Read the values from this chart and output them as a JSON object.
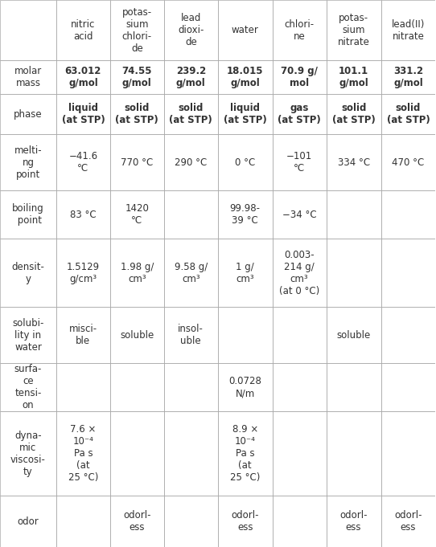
{
  "columns": [
    "",
    "nitric\nacid",
    "potas-\nsium\nchlori-\nde",
    "lead\ndioxi-\nde",
    "water",
    "chlori-\nne",
    "potas-\nsium\nnitrate",
    "lead(II)\nnitrate"
  ],
  "rows": [
    {
      "label": "molar\nmass",
      "values": [
        "63.012\ng/mol",
        "74.55\ng/mol",
        "239.2\ng/mol",
        "18.015\ng/mol",
        "70.9 g/\nmol",
        "101.1\ng/mol",
        "331.2\ng/mol"
      ]
    },
    {
      "label": "phase",
      "values": [
        "liquid\n(at STP)",
        "solid\n(at STP)",
        "solid\n(at STP)",
        "liquid\n(at STP)",
        "gas\n(at STP)",
        "solid\n(at STP)",
        "solid\n(at STP)"
      ]
    },
    {
      "label": "melti-\nng\npoint",
      "values": [
        "−41.6\n°C",
        "770 °C",
        "290 °C",
        "0 °C",
        "−101\n°C",
        "334 °C",
        "470 °C"
      ]
    },
    {
      "label": "boiling\n point",
      "values": [
        "83 °C",
        "1420\n°C",
        "",
        "99.98-\n39 °C",
        "−34 °C",
        "",
        ""
      ]
    },
    {
      "label": "densit-\ny",
      "values": [
        "1.5129\ng/cm³",
        "1.98 g/\ncm³",
        "9.58 g/\ncm³",
        "1 g/\ncm³",
        "0.003-\n214 g/\ncm³\n(at 0 °C)",
        "",
        ""
      ]
    },
    {
      "label": "solubi-\nlity in\nwater",
      "values": [
        "misci-\nble",
        "soluble",
        "insol-\nuble",
        "",
        "",
        "soluble",
        ""
      ]
    },
    {
      "label": "surfa-\nce\ntensi-\non",
      "values": [
        "",
        "",
        "",
        "0.0728\nN/m",
        "",
        "",
        ""
      ]
    },
    {
      "label": "dyna-\nmic\nviscosi-\nty",
      "values": [
        "7.6 ×\n10⁻⁴\nPa s\n(at\n25 °C)",
        "",
        "",
        "8.9 ×\n10⁻⁴\nPa s\n(at\n25 °C)",
        "",
        "",
        ""
      ]
    },
    {
      "label": "odor",
      "values": [
        "",
        "odorl-\ness",
        "",
        "odorl-\ness",
        "",
        "odorl-\ness",
        "odorl-\ness"
      ]
    }
  ],
  "bg_color": "#ffffff",
  "line_color": "#aaaaaa",
  "text_color": "#333333",
  "header_fontsize": 8.5,
  "cell_fontsize": 8.5,
  "label_fontsize": 8.5
}
